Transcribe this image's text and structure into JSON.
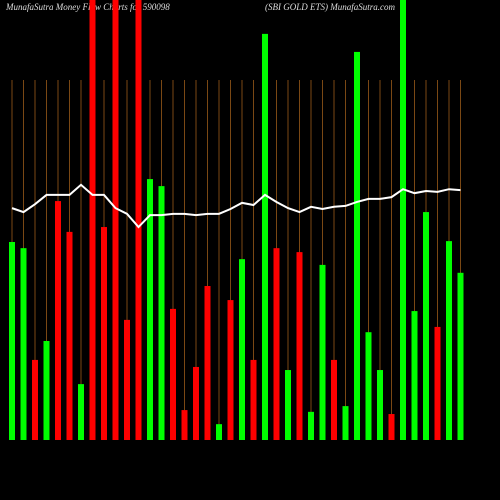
{
  "chart_data": {
    "type": "bar",
    "title": "MunafaSutra  Money Flow  Charts for 590098",
    "subtitle": "(SBI GOLD ETS) MunafaSutra.com",
    "ylim": [
      0,
      100
    ],
    "values": [
      45,
      43.6,
      18.2,
      22.5,
      54.3,
      47.3,
      12.7,
      100,
      48.4,
      100,
      27.3,
      100,
      59.3,
      57.7,
      29.8,
      6.8,
      16.6,
      35,
      3.6,
      31.8,
      41.1,
      18.2,
      92.3,
      43.6,
      15.9,
      42.7,
      6.4,
      39.8,
      18.2,
      7.7,
      88.2,
      24.5,
      15.9,
      5.9,
      100,
      29.3,
      51.8,
      25.7,
      45.2,
      38
    ],
    "colors": [
      "#00ff00",
      "#00ff00",
      "#ff0000",
      "#00ff00",
      "#ff0000",
      "#ff0000",
      "#00ff00",
      "#ff0000",
      "#ff0000",
      "#ff0000",
      "#ff0000",
      "#ff0000",
      "#00ff00",
      "#00ff00",
      "#ff0000",
      "#ff0000",
      "#ff0000",
      "#ff0000",
      "#00ff00",
      "#ff0000",
      "#00ff00",
      "#ff0000",
      "#00ff00",
      "#ff0000",
      "#00ff00",
      "#ff0000",
      "#00ff00",
      "#00ff00",
      "#ff0000",
      "#00ff00",
      "#00ff00",
      "#00ff00",
      "#00ff00",
      "#ff0000",
      "#00ff00",
      "#00ff00",
      "#00ff00",
      "#ff0000",
      "#00ff00",
      "#00ff00"
    ],
    "line": {
      "color": "#ffffff",
      "values": [
        52.7,
        51.8,
        53.6,
        55.7,
        55.7,
        55.7,
        58,
        55.7,
        55.7,
        52.7,
        51.4,
        48.4,
        51.1,
        51.1,
        51.4,
        51.4,
        51.1,
        51.4,
        51.4,
        52.5,
        53.9,
        53.4,
        55.7,
        54.1,
        52.7,
        51.8,
        53,
        52.5,
        53,
        53.2,
        54.1,
        54.8,
        54.8,
        55.2,
        57,
        56.1,
        56.6,
        56.4,
        57,
        56.8
      ]
    }
  }
}
